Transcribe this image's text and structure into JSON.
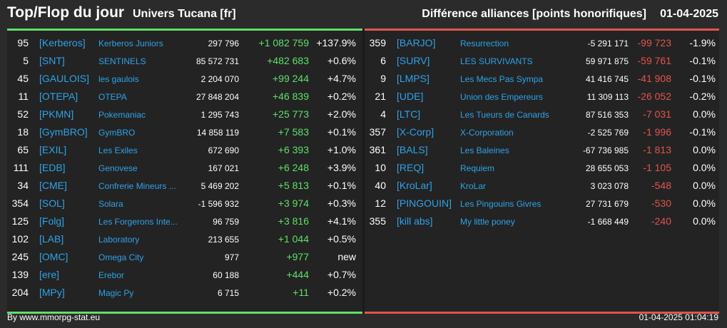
{
  "header": {
    "title": "Top/Flop du jour",
    "universe": "Univers Tucana [fr]",
    "description": "Différence alliances [points honorifiques]",
    "date": "01-04-2025"
  },
  "colors": {
    "positive": "#5ee06a",
    "negative": "#e2544e",
    "tag": "#2ea3e8"
  },
  "top": [
    {
      "rank": "95",
      "tag": "[Kerberos]",
      "name": "Kerberos Juniors",
      "points": "297 796",
      "diff": "+1 082 759",
      "pct": "+137.9%"
    },
    {
      "rank": "5",
      "tag": "[SNT]",
      "name": "SENTINELS",
      "points": "85 572 731",
      "diff": "+482 683",
      "pct": "+0.6%"
    },
    {
      "rank": "45",
      "tag": "[GAULOIS]",
      "name": "les gaulois",
      "points": "2 204 070",
      "diff": "+99 244",
      "pct": "+4.7%"
    },
    {
      "rank": "11",
      "tag": "[OTEPA]",
      "name": "OTEPA",
      "points": "27 848 204",
      "diff": "+46 839",
      "pct": "+0.2%"
    },
    {
      "rank": "52",
      "tag": "[PKMN]",
      "name": "Pokemaniac",
      "points": "1 295 743",
      "diff": "+25 773",
      "pct": "+2.0%"
    },
    {
      "rank": "18",
      "tag": "[GymBRO]",
      "name": "GymBRO",
      "points": "14 858 119",
      "diff": "+7 583",
      "pct": "+0.1%"
    },
    {
      "rank": "65",
      "tag": "[EXIL]",
      "name": "Les Exiles",
      "points": "672 690",
      "diff": "+6 393",
      "pct": "+1.0%"
    },
    {
      "rank": "111",
      "tag": "[EDB]",
      "name": "Genovese",
      "points": "167 021",
      "diff": "+6 248",
      "pct": "+3.9%"
    },
    {
      "rank": "34",
      "tag": "[CME]",
      "name": "Confrerie Mineurs ...",
      "points": "5 469 202",
      "diff": "+5 813",
      "pct": "+0.1%"
    },
    {
      "rank": "354",
      "tag": "[SOL]",
      "name": "Solara",
      "points": "-1 596 932",
      "diff": "+3 974",
      "pct": "+0.3%"
    },
    {
      "rank": "125",
      "tag": "[Folg]",
      "name": "Les Forgerons Inte...",
      "points": "96 759",
      "diff": "+3 816",
      "pct": "+4.1%"
    },
    {
      "rank": "102",
      "tag": "[LAB]",
      "name": "Laboratory",
      "points": "213 655",
      "diff": "+1 044",
      "pct": "+0.5%"
    },
    {
      "rank": "245",
      "tag": "[OMC]",
      "name": "Omega City",
      "points": "977",
      "diff": "+977",
      "pct": "new"
    },
    {
      "rank": "139",
      "tag": "[ere]",
      "name": "Erebor",
      "points": "60 188",
      "diff": "+444",
      "pct": "+0.7%"
    },
    {
      "rank": "204",
      "tag": "[MPy]",
      "name": "Magic Py",
      "points": "6 715",
      "diff": "+11",
      "pct": "+0.2%"
    }
  ],
  "flop": [
    {
      "rank": "359",
      "tag": "[BARJO]",
      "name": "Resurrection",
      "points": "-5 291 171",
      "diff": "-99 723",
      "pct": "-1.9%"
    },
    {
      "rank": "6",
      "tag": "[SURV]",
      "name": "LES SURVIVANTS",
      "points": "59 971 875",
      "diff": "-59 761",
      "pct": "-0.1%"
    },
    {
      "rank": "9",
      "tag": "[LMPS]",
      "name": "Les Mecs Pas Sympa",
      "points": "41 416 745",
      "diff": "-41 908",
      "pct": "-0.1%"
    },
    {
      "rank": "21",
      "tag": "[UDE]",
      "name": "Union des Empereurs",
      "points": "11 309 113",
      "diff": "-26 052",
      "pct": "-0.2%"
    },
    {
      "rank": "4",
      "tag": "[LTC]",
      "name": "Les Tueurs de Canards",
      "points": "87 516 353",
      "diff": "-7 031",
      "pct": "0.0%"
    },
    {
      "rank": "357",
      "tag": "[X-Corp]",
      "name": "X-Corporation",
      "points": "-2 525 769",
      "diff": "-1 996",
      "pct": "-0.1%"
    },
    {
      "rank": "361",
      "tag": "[BALS]",
      "name": "Les Baleines",
      "points": "-67 736 985",
      "diff": "-1 813",
      "pct": "0.0%"
    },
    {
      "rank": "10",
      "tag": "[REQ]",
      "name": "Requiem",
      "points": "28 655 053",
      "diff": "-1 105",
      "pct": "0.0%"
    },
    {
      "rank": "40",
      "tag": "[KroLar]",
      "name": "KroLar",
      "points": "3 023 078",
      "diff": "-548",
      "pct": "0.0%"
    },
    {
      "rank": "12",
      "tag": "[PINGOUIN]",
      "name": "Les Pingouins Givres",
      "points": "27 731 679",
      "diff": "-530",
      "pct": "0.0%"
    },
    {
      "rank": "355",
      "tag": "[kill abs]",
      "name": "My little poney",
      "points": "-1 668 449",
      "diff": "-240",
      "pct": "0.0%"
    }
  ],
  "footer": {
    "source": "By www.mmorpg-stat.eu",
    "timestamp": "01-04-2025 01:04:19"
  }
}
